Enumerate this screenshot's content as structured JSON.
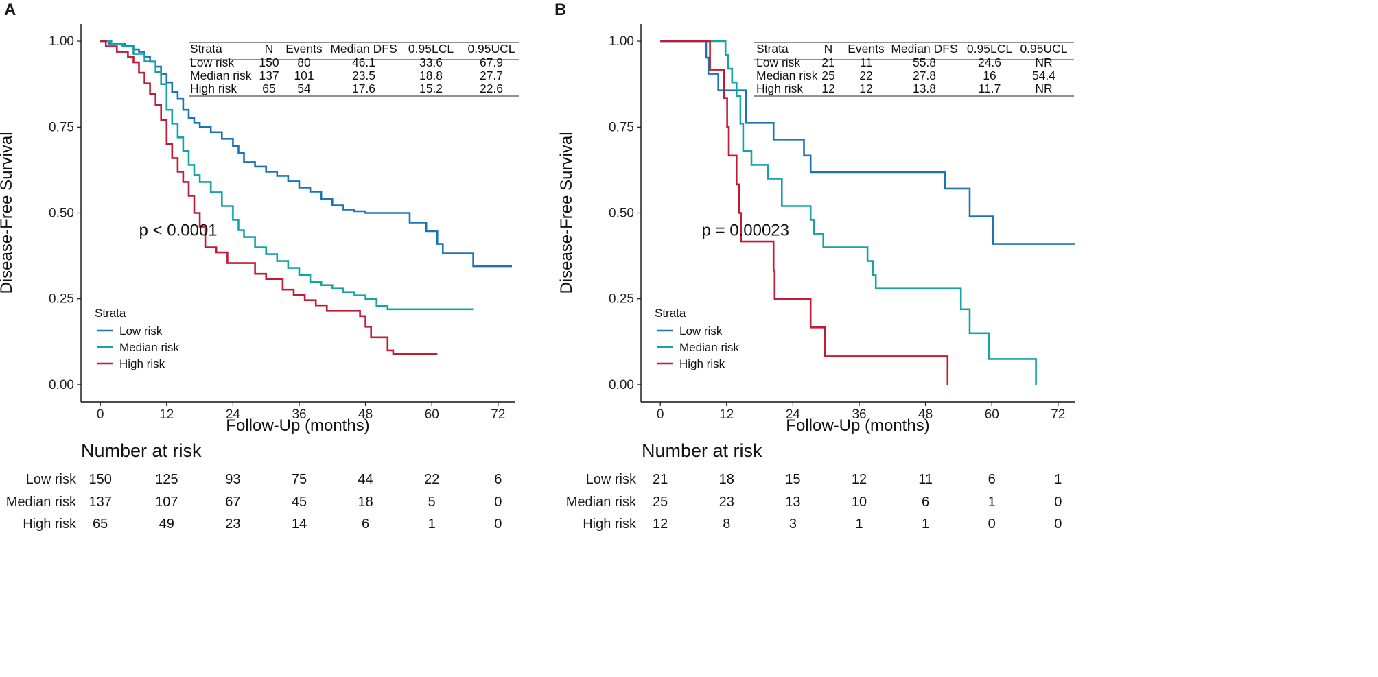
{
  "chart_data": [
    {
      "type": "line",
      "panel_label": "A",
      "xlabel": "Follow-Up (months)",
      "ylabel": "Disease-Free Survival",
      "xlim": [
        -3.5,
        75
      ],
      "ylim": [
        -0.05,
        1.05
      ],
      "x_ticks": [
        0,
        12,
        24,
        36,
        48,
        60,
        72
      ],
      "y_ticks": [
        "0.00",
        "0.25",
        "0.50",
        "0.75",
        "1.00"
      ],
      "pvalue_text": "p < 0.0001",
      "pvalue_pos": [
        7,
        0.45
      ],
      "legend": {
        "title": "Strata",
        "items": [
          "Low risk",
          "Median risk",
          "High risk"
        ],
        "position": "bottom-left"
      },
      "summary_table": {
        "headers": [
          "Strata",
          "N",
          "Events",
          "Median DFS",
          "0.95LCL",
          "0.95UCL"
        ],
        "rows": [
          [
            "Low risk",
            "150",
            "80",
            "46.1",
            "33.6",
            "67.9"
          ],
          [
            "Median risk",
            "137",
            "101",
            "23.5",
            "18.8",
            "27.7"
          ],
          [
            "High risk",
            "65",
            "54",
            "17.6",
            "15.2",
            "22.6"
          ]
        ]
      },
      "series": [
        {
          "name": "Low risk",
          "color": "#1b75b3",
          "steps": [
            [
              0,
              1.0
            ],
            [
              1.5,
              0.993
            ],
            [
              3,
              0.993
            ],
            [
              4.5,
              0.986
            ],
            [
              6,
              0.976
            ],
            [
              7,
              0.969
            ],
            [
              8,
              0.955
            ],
            [
              9,
              0.94
            ],
            [
              10,
              0.926
            ],
            [
              11,
              0.905
            ],
            [
              12,
              0.88
            ],
            [
              13,
              0.853
            ],
            [
              14,
              0.832
            ],
            [
              15,
              0.8
            ],
            [
              16,
              0.777
            ],
            [
              17,
              0.762
            ],
            [
              18,
              0.75
            ],
            [
              20,
              0.735
            ],
            [
              22,
              0.716
            ],
            [
              24,
              0.695
            ],
            [
              25,
              0.674
            ],
            [
              26,
              0.648
            ],
            [
              28,
              0.635
            ],
            [
              30,
              0.62
            ],
            [
              32,
              0.608
            ],
            [
              34,
              0.592
            ],
            [
              36,
              0.574
            ],
            [
              38,
              0.562
            ],
            [
              40,
              0.541
            ],
            [
              42,
              0.522
            ],
            [
              44,
              0.51
            ],
            [
              46,
              0.505
            ],
            [
              48,
              0.5
            ],
            [
              56,
              0.472
            ],
            [
              59,
              0.447
            ],
            [
              61,
              0.41
            ],
            [
              62,
              0.382
            ],
            [
              66,
              0.382
            ],
            [
              67.5,
              0.345
            ],
            [
              74.5,
              0.345
            ]
          ]
        },
        {
          "name": "Median risk",
          "color": "#16a3a3",
          "steps": [
            [
              0,
              1.0
            ],
            [
              2,
              0.993
            ],
            [
              4,
              0.985
            ],
            [
              6,
              0.963
            ],
            [
              8,
              0.941
            ],
            [
              10,
              0.91
            ],
            [
              11,
              0.875
            ],
            [
              12,
              0.8
            ],
            [
              13,
              0.76
            ],
            [
              14,
              0.72
            ],
            [
              15,
              0.68
            ],
            [
              16,
              0.64
            ],
            [
              17,
              0.61
            ],
            [
              18,
              0.59
            ],
            [
              20,
              0.56
            ],
            [
              22,
              0.52
            ],
            [
              24,
              0.48
            ],
            [
              25,
              0.45
            ],
            [
              26,
              0.43
            ],
            [
              28,
              0.4
            ],
            [
              30,
              0.38
            ],
            [
              32,
              0.36
            ],
            [
              34,
              0.34
            ],
            [
              36,
              0.32
            ],
            [
              38,
              0.3
            ],
            [
              40,
              0.29
            ],
            [
              42,
              0.28
            ],
            [
              44,
              0.27
            ],
            [
              46,
              0.26
            ],
            [
              48,
              0.25
            ],
            [
              50,
              0.23
            ],
            [
              52,
              0.22
            ],
            [
              67.5,
              0.22
            ]
          ]
        },
        {
          "name": "High risk",
          "color": "#c11b35",
          "steps": [
            [
              0,
              1.0
            ],
            [
              1,
              0.985
            ],
            [
              3,
              0.969
            ],
            [
              5,
              0.954
            ],
            [
              6,
              0.938
            ],
            [
              7,
              0.908
            ],
            [
              8,
              0.877
            ],
            [
              9,
              0.846
            ],
            [
              10,
              0.815
            ],
            [
              11,
              0.77
            ],
            [
              12,
              0.7
            ],
            [
              13,
              0.66
            ],
            [
              14,
              0.62
            ],
            [
              15,
              0.59
            ],
            [
              16,
              0.55
            ],
            [
              17,
              0.5
            ],
            [
              18,
              0.46
            ],
            [
              19,
              0.4
            ],
            [
              21,
              0.385
            ],
            [
              23,
              0.354
            ],
            [
              28,
              0.323
            ],
            [
              30,
              0.308
            ],
            [
              33,
              0.277
            ],
            [
              35,
              0.262
            ],
            [
              37,
              0.246
            ],
            [
              39,
              0.231
            ],
            [
              41,
              0.215
            ],
            [
              47,
              0.2
            ],
            [
              48,
              0.169
            ],
            [
              49,
              0.138
            ],
            [
              52,
              0.1
            ],
            [
              53,
              0.09
            ],
            [
              61,
              0.09
            ]
          ]
        }
      ],
      "risk_table": {
        "title": "Number at risk",
        "time_points": [
          0,
          12,
          24,
          36,
          48,
          60,
          72
        ],
        "rows": [
          {
            "label": "Low risk",
            "color": "#1b75b3",
            "values": [
              "150",
              "125",
              "93",
              "75",
              "44",
              "22",
              "6"
            ]
          },
          {
            "label": "Median risk",
            "color": "#16a3a3",
            "values": [
              "137",
              "107",
              "67",
              "45",
              "18",
              "5",
              "0"
            ]
          },
          {
            "label": "High risk",
            "color": "#c11b35",
            "values": [
              "65",
              "49",
              "23",
              "14",
              "6",
              "1",
              "0"
            ]
          }
        ]
      }
    },
    {
      "type": "line",
      "panel_label": "B",
      "xlabel": "Follow-Up (months)",
      "ylabel": "Disease-Free Survival",
      "xlim": [
        -3.5,
        75
      ],
      "ylim": [
        -0.05,
        1.05
      ],
      "x_ticks": [
        0,
        12,
        24,
        36,
        48,
        60,
        72
      ],
      "y_ticks": [
        "0.00",
        "0.25",
        "0.50",
        "0.75",
        "1.00"
      ],
      "pvalue_text": "p = 0.00023",
      "pvalue_pos": [
        7.5,
        0.45
      ],
      "legend": {
        "title": "Strata",
        "items": [
          "Low risk",
          "Median risk",
          "High risk"
        ],
        "position": "bottom-left"
      },
      "summary_table": {
        "headers": [
          "Strata",
          "N",
          "Events",
          "Median DFS",
          "0.95LCL",
          "0.95UCL"
        ],
        "rows": [
          [
            "Low risk",
            "21",
            "11",
            "55.8",
            "24.6",
            "NR"
          ],
          [
            "Median risk",
            "25",
            "22",
            "27.8",
            "16",
            "54.4"
          ],
          [
            "High risk",
            "12",
            "12",
            "13.8",
            "11.7",
            "NR"
          ]
        ]
      },
      "series": [
        {
          "name": "Low risk",
          "color": "#1b75b3",
          "steps": [
            [
              0,
              1.0
            ],
            [
              8.3,
              0.952
            ],
            [
              8.7,
              0.905
            ],
            [
              10.5,
              0.857
            ],
            [
              15.5,
              0.762
            ],
            [
              20.5,
              0.714
            ],
            [
              26,
              0.667
            ],
            [
              27.2,
              0.619
            ],
            [
              51.5,
              0.571
            ],
            [
              56,
              0.49
            ],
            [
              60.2,
              0.41
            ],
            [
              75,
              0.41
            ]
          ]
        },
        {
          "name": "Median risk",
          "color": "#16a3a3",
          "steps": [
            [
              0,
              1.0
            ],
            [
              11.8,
              0.96
            ],
            [
              12.3,
              0.92
            ],
            [
              13,
              0.88
            ],
            [
              13.8,
              0.84
            ],
            [
              14.5,
              0.76
            ],
            [
              15,
              0.68
            ],
            [
              16.5,
              0.64
            ],
            [
              19.5,
              0.6
            ],
            [
              22,
              0.52
            ],
            [
              27.2,
              0.48
            ],
            [
              27.8,
              0.44
            ],
            [
              29.5,
              0.4
            ],
            [
              37.5,
              0.36
            ],
            [
              38.5,
              0.32
            ],
            [
              39,
              0.28
            ],
            [
              54.4,
              0.22
            ],
            [
              56,
              0.15
            ],
            [
              59.5,
              0.075
            ],
            [
              68,
              0.0
            ]
          ]
        },
        {
          "name": "High risk",
          "color": "#c11b35",
          "steps": [
            [
              0,
              1.0
            ],
            [
              9,
              0.917
            ],
            [
              11.5,
              0.833
            ],
            [
              12.1,
              0.75
            ],
            [
              12.4,
              0.667
            ],
            [
              13.8,
              0.583
            ],
            [
              14.3,
              0.5
            ],
            [
              14.6,
              0.417
            ],
            [
              20.5,
              0.333
            ],
            [
              20.7,
              0.25
            ],
            [
              27.2,
              0.167
            ],
            [
              29.8,
              0.083
            ],
            [
              52,
              0.0
            ]
          ]
        }
      ],
      "risk_table": {
        "title": "Number at risk",
        "time_points": [
          0,
          12,
          24,
          36,
          48,
          60,
          72
        ],
        "rows": [
          {
            "label": "Low risk",
            "color": "#1b75b3",
            "values": [
              "21",
              "18",
              "15",
              "12",
              "11",
              "6",
              "1"
            ]
          },
          {
            "label": "Median risk",
            "color": "#16a3a3",
            "values": [
              "25",
              "23",
              "13",
              "10",
              "6",
              "1",
              "0"
            ]
          },
          {
            "label": "High risk",
            "color": "#c11b35",
            "values": [
              "12",
              "8",
              "3",
              "1",
              "1",
              "0",
              "0"
            ]
          }
        ]
      }
    }
  ]
}
